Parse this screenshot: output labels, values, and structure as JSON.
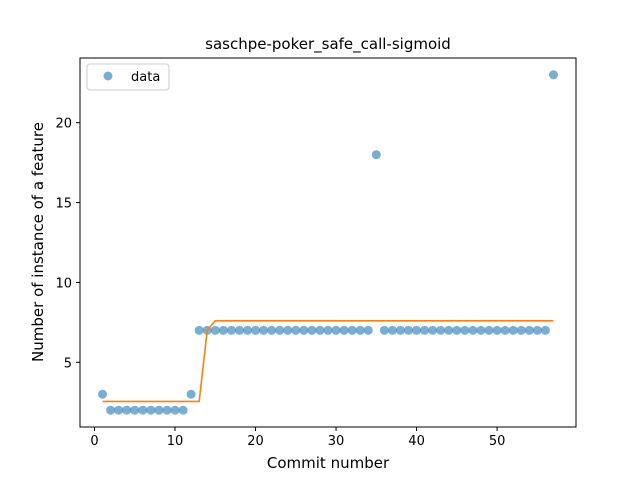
{
  "chart_data": {
    "type": "scatter",
    "title": "saschpe-poker_safe_call-sigmoid",
    "xlabel": "Commit number",
    "ylabel": "Number of instance of a feature",
    "xlim": [
      -1.8,
      59.8
    ],
    "ylim": [
      0.95,
      24.05
    ],
    "xticks": [
      0,
      10,
      20,
      30,
      40,
      50
    ],
    "yticks": [
      5,
      10,
      15,
      20
    ],
    "grid": false,
    "legend": {
      "position": "top-left",
      "entries": [
        "data"
      ]
    },
    "colors": {
      "data": "#1f77b4",
      "fit": "#ff7f0e"
    },
    "series": [
      {
        "name": "data",
        "kind": "scatter",
        "x": [
          1,
          2,
          3,
          4,
          5,
          6,
          7,
          8,
          9,
          10,
          11,
          12,
          13,
          14,
          15,
          16,
          17,
          18,
          19,
          20,
          21,
          22,
          23,
          24,
          25,
          26,
          27,
          28,
          29,
          30,
          31,
          32,
          33,
          34,
          35,
          36,
          37,
          38,
          39,
          40,
          41,
          42,
          43,
          44,
          45,
          46,
          47,
          48,
          49,
          50,
          51,
          52,
          53,
          54,
          55,
          56,
          57
        ],
        "y": [
          3,
          2,
          2,
          2,
          2,
          2,
          2,
          2,
          2,
          2,
          2,
          3,
          7,
          7,
          7,
          7,
          7,
          7,
          7,
          7,
          7,
          7,
          7,
          7,
          7,
          7,
          7,
          7,
          7,
          7,
          7,
          7,
          7,
          7,
          18,
          7,
          7,
          7,
          7,
          7,
          7,
          7,
          7,
          7,
          7,
          7,
          7,
          7,
          7,
          7,
          7,
          7,
          7,
          7,
          7,
          7,
          23
        ]
      },
      {
        "kind": "line",
        "x": [
          1,
          13,
          14,
          15,
          57
        ],
        "y": [
          2.55,
          2.55,
          7.0,
          7.6,
          7.6
        ]
      }
    ]
  }
}
